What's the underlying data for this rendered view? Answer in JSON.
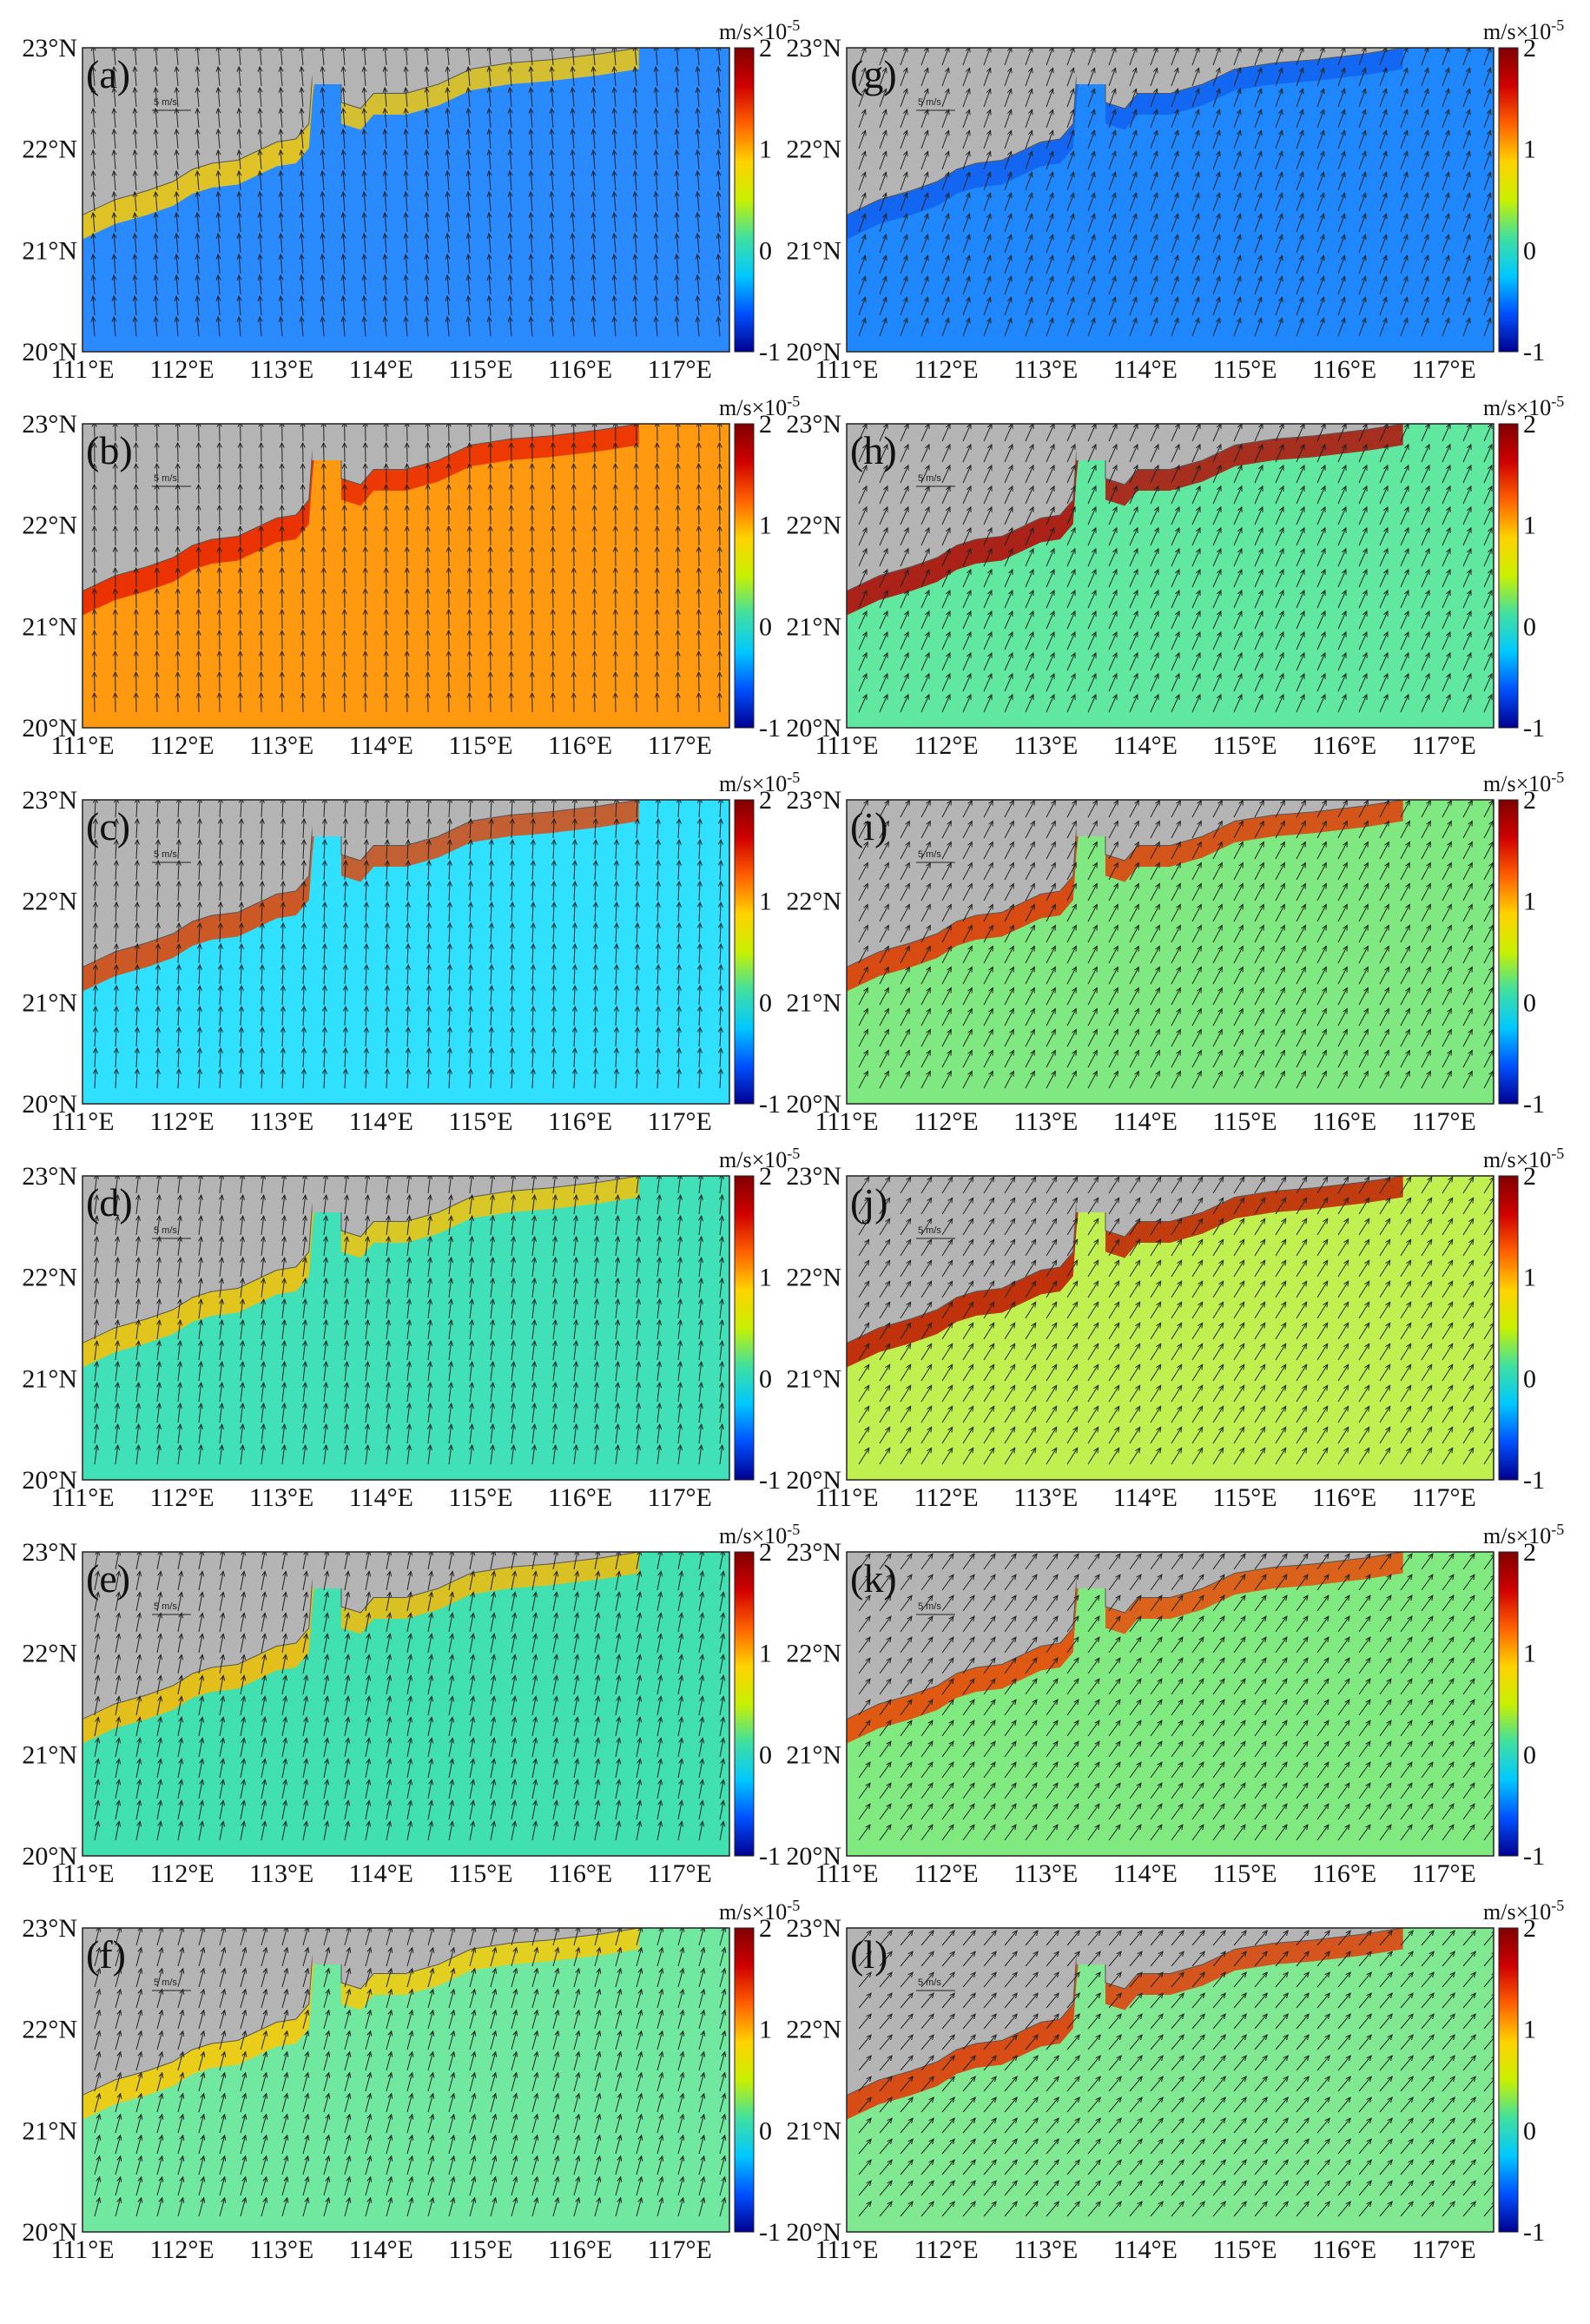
{
  "figure": {
    "lon_ticks": [
      "111°E",
      "112°E",
      "113°E",
      "114°E",
      "115°E",
      "116°E",
      "117°E"
    ],
    "lat_ticks": [
      "23°N",
      "22°N",
      "21°N",
      "20°N"
    ],
    "colorbar": {
      "unit": "m/s×10",
      "unit_exponent": "-5",
      "tick_labels": [
        "2",
        "1",
        "0",
        "-1"
      ],
      "range": [
        -1,
        2
      ],
      "colors": [
        "#00008f",
        "#0050ff",
        "#00c8ff",
        "#40e0a0",
        "#c8f000",
        "#ffd200",
        "#ff6000",
        "#d00000",
        "#800000"
      ]
    },
    "vector_scale_label": "5 m/s",
    "land_color": "#b4b4b4",
    "panels": [
      {
        "label": "(a)",
        "bg": "#2a8aff",
        "coast": "#ffcc00"
      },
      {
        "label": "(b)",
        "bg": "#ff9a10",
        "coast": "#e82000"
      },
      {
        "label": "(c)",
        "bg": "#30e0ff",
        "coast": "#e84000"
      },
      {
        "label": "(d)",
        "bg": "#40e0b8",
        "coast": "#ffc000"
      },
      {
        "label": "(e)",
        "bg": "#40e0b0",
        "coast": "#ffb800"
      },
      {
        "label": "(f)",
        "bg": "#70e8a0",
        "coast": "#ffc800"
      },
      {
        "label": "(g)",
        "bg": "#2088ff",
        "coast": "#1060f0"
      },
      {
        "label": "(h)",
        "bg": "#60e8a0",
        "coast": "#b80000"
      },
      {
        "label": "(i)",
        "bg": "#80e880",
        "coast": "#e83000"
      },
      {
        "label": "(j)",
        "bg": "#c0f050",
        "coast": "#c01000"
      },
      {
        "label": "(k)",
        "bg": "#80ea80",
        "coast": "#f04000"
      },
      {
        "label": "(l)",
        "bg": "#80e890",
        "coast": "#e83000"
      }
    ]
  }
}
